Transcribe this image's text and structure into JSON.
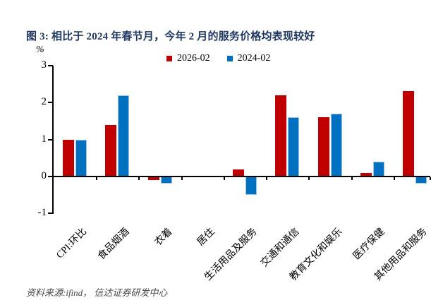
{
  "title": "图 3: 相比于 2024 年春节月，今年 2 月的服务价格均表现较好",
  "source_note": "资料来源:ifind， 信达证券研发中心",
  "legend": {
    "items": [
      {
        "label": "2026-02",
        "color": "#C00000"
      },
      {
        "label": "2024-02",
        "color": "#0070C0"
      }
    ]
  },
  "y_axis": {
    "unit_label": "%",
    "ticks": [
      3,
      2,
      1,
      0,
      -1
    ]
  },
  "colors": {
    "title": "#1F3864",
    "red_series": "#C00000",
    "blue_series": "#0070C0",
    "blue_series_border": "#9DC3E6",
    "axis": "#000000"
  },
  "chart_data": {
    "type": "bar",
    "title": "图 3: 相比于 2024 年春节月，今年 2 月的服务价格均表现较好",
    "categories": [
      "CPI:环比",
      "食品烟酒",
      "衣着",
      "居住",
      "生活用品及服务",
      "交通和通信",
      "教育文化和娱乐",
      "医疗保健",
      "其他用品和服务"
    ],
    "series": [
      {
        "name": "2026-02",
        "color": "#C00000",
        "values": [
          1.0,
          1.4,
          -0.1,
          0,
          0.2,
          2.2,
          1.6,
          0.1,
          2.3
        ]
      },
      {
        "name": "2024-02",
        "color": "#0070C0",
        "values": [
          1.0,
          2.2,
          -0.2,
          0,
          -0.5,
          1.6,
          1.7,
          0.4,
          -0.2
        ]
      }
    ],
    "xlabel": "",
    "ylabel": "%",
    "ylim": [
      -1,
      3
    ],
    "grid": false,
    "legend_position": "top-center"
  }
}
